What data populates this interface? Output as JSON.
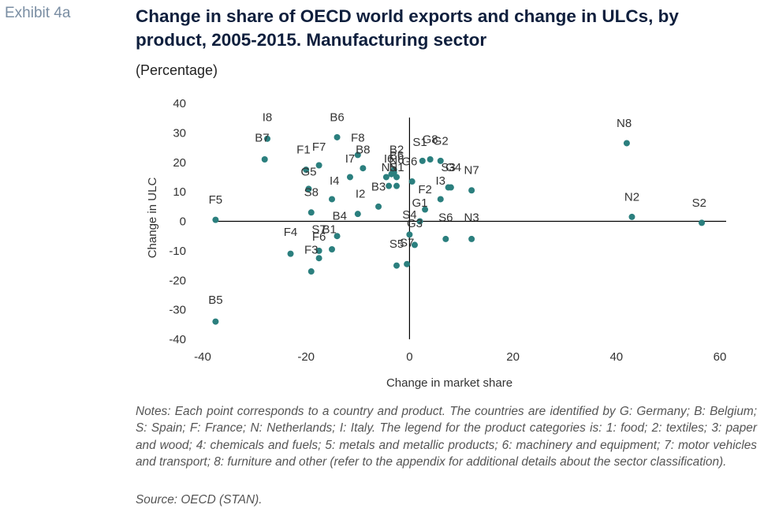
{
  "header": {
    "exhibit": "Exhibit 4a",
    "title": "Change in share of OECD world exports and change in ULCs, by product, 2005-2015. Manufacturing sector",
    "subtitle": "(Percentage)"
  },
  "footer": {
    "notes": "Notes: Each point corresponds to a country and product. The countries are identified by G: Germany; B: Belgium; S: Spain; F: France; N: Netherlands; I: Italy. The legend for the product categories is: 1: food; 2: textiles; 3: paper and wood; 4: chemicals and fuels; 5: metals and metallic products; 6: machinery and equipment; 7: motor vehicles and transport; 8: furniture and other (refer to the appendix for additional details about the sector classification).",
    "source": "Source: OECD (STAN)."
  },
  "colors": {
    "point": "#2b7f7e",
    "axis": "#000000",
    "text": "#222222"
  },
  "chart_data": {
    "type": "scatter",
    "xlabel": "Change in market share",
    "ylabel": "Change in ULC",
    "xlim": [
      -40,
      60
    ],
    "ylim": [
      -40,
      40
    ],
    "xticks": [
      -40,
      -20,
      0,
      20,
      40,
      60
    ],
    "yticks": [
      40,
      30,
      20,
      10,
      0,
      -10,
      -20,
      -30,
      -40
    ],
    "grid": false,
    "points": [
      {
        "label": "F5",
        "x": -37.5,
        "y": 0.5
      },
      {
        "label": "B5",
        "x": -37.5,
        "y": -34
      },
      {
        "label": "B7",
        "x": -28,
        "y": 21
      },
      {
        "label": "I8",
        "x": -27.5,
        "y": 28
      },
      {
        "label": "F1",
        "x": -20,
        "y": 17.5
      },
      {
        "label": "G5",
        "x": -19.5,
        "y": 11
      },
      {
        "label": "S8",
        "x": -19,
        "y": 3
      },
      {
        "label": "F4",
        "x": -23,
        "y": -11
      },
      {
        "label": "F3",
        "x": -19,
        "y": -17
      },
      {
        "label": "F7",
        "x": -17.5,
        "y": 19
      },
      {
        "label": "S7",
        "x": -17.5,
        "y": -10
      },
      {
        "label": "F6",
        "x": -17.5,
        "y": -12.5
      },
      {
        "label": "B6",
        "x": -14,
        "y": 28.5
      },
      {
        "label": "I4",
        "x": -15,
        "y": 7.5
      },
      {
        "label": "B1",
        "x": -15,
        "y": -9.5
      },
      {
        "label": "B4",
        "x": -14,
        "y": -5
      },
      {
        "label": "F8",
        "x": -10,
        "y": 22.5
      },
      {
        "label": "B8",
        "x": -9,
        "y": 18
      },
      {
        "label": "I7",
        "x": -11.5,
        "y": 15
      },
      {
        "label": "I2",
        "x": -10,
        "y": 2.5
      },
      {
        "label": "B3",
        "x": -6,
        "y": 5
      },
      {
        "label": "N5",
        "x": -4.5,
        "y": 15
      },
      {
        "label": "B2",
        "x": -3.5,
        "y": 16
      },
      {
        "label": "I6",
        "x": -3,
        "y": 17.5
      },
      {
        "label": "N6",
        "x": -3,
        "y": 16.5
      },
      {
        "label": "N1",
        "x": -2.5,
        "y": 15
      },
      {
        "label": "G5b",
        "x": -4,
        "y": 12
      },
      {
        "label": "G5c",
        "x": -2.5,
        "y": 12
      },
      {
        "label": "G6",
        "x": 0.5,
        "y": 13.5
      },
      {
        "label": "S1",
        "x": 2.5,
        "y": 20.5
      },
      {
        "label": "G8",
        "x": 4,
        "y": 21
      },
      {
        "label": "G2",
        "x": 6,
        "y": 20.5
      },
      {
        "label": "S3",
        "x": 7.5,
        "y": 11.5
      },
      {
        "label": "G4",
        "x": 8,
        "y": 11.5
      },
      {
        "label": "I3",
        "x": 6,
        "y": 7.5
      },
      {
        "label": "F2",
        "x": 3,
        "y": 4
      },
      {
        "label": "N7",
        "x": 12,
        "y": 10.5
      },
      {
        "label": "G1",
        "x": 2,
        "y": 0
      },
      {
        "label": "S4",
        "x": 0,
        "y": -4.5
      },
      {
        "label": "G3",
        "x": 1,
        "y": -8
      },
      {
        "label": "S6",
        "x": 7,
        "y": -6
      },
      {
        "label": "N3",
        "x": 12,
        "y": -6
      },
      {
        "label": "S5",
        "x": -2.5,
        "y": -15
      },
      {
        "label": "S7b",
        "x": -0.5,
        "y": -14.5
      },
      {
        "label": "N8",
        "x": 42,
        "y": 26.5
      },
      {
        "label": "N2",
        "x": 43,
        "y": 1.5
      },
      {
        "label": "S2",
        "x": 56.5,
        "y": -0.5
      }
    ],
    "point_labels": [
      {
        "text": "F5",
        "x": -37.5,
        "y": 6
      },
      {
        "text": "B5",
        "x": -37.5,
        "y": -28
      },
      {
        "text": "B7",
        "x": -28.5,
        "y": 27
      },
      {
        "text": "I8",
        "x": -27.5,
        "y": 34
      },
      {
        "text": "F1",
        "x": -20.5,
        "y": 23
      },
      {
        "text": "F7",
        "x": -17.5,
        "y": 24
      },
      {
        "text": "G5",
        "x": -19.5,
        "y": 15.5
      },
      {
        "text": "S8",
        "x": -19,
        "y": 8.5
      },
      {
        "text": "I4",
        "x": -14.5,
        "y": 12.5
      },
      {
        "text": "B6",
        "x": -14,
        "y": 34
      },
      {
        "text": "F8",
        "x": -10,
        "y": 27
      },
      {
        "text": "B8",
        "x": -9,
        "y": 23
      },
      {
        "text": "I7",
        "x": -11.5,
        "y": 20
      },
      {
        "text": "I2",
        "x": -9.5,
        "y": 8
      },
      {
        "text": "B3",
        "x": -6,
        "y": 10.5
      },
      {
        "text": "B2",
        "x": -2.5,
        "y": 23
      },
      {
        "text": "I6",
        "x": -4,
        "y": 20
      },
      {
        "text": "B6",
        "x": -2.5,
        "y": 21
      },
      {
        "text": "N6",
        "x": -2.5,
        "y": 19.5
      },
      {
        "text": "N5",
        "x": -4,
        "y": 17
      },
      {
        "text": "N1",
        "x": -2.5,
        "y": 17
      },
      {
        "text": "G6",
        "x": 0,
        "y": 19
      },
      {
        "text": "S1",
        "x": 2,
        "y": 25.5
      },
      {
        "text": "G8",
        "x": 4,
        "y": 26.5
      },
      {
        "text": "G2",
        "x": 6,
        "y": 26
      },
      {
        "text": "S3",
        "x": 7.5,
        "y": 17
      },
      {
        "text": "G4",
        "x": 8.5,
        "y": 17
      },
      {
        "text": "N7",
        "x": 12,
        "y": 16
      },
      {
        "text": "I3",
        "x": 6,
        "y": 12.5
      },
      {
        "text": "F2",
        "x": 3,
        "y": 9.5
      },
      {
        "text": "G1",
        "x": 2,
        "y": 5
      },
      {
        "text": "S4",
        "x": 0,
        "y": 1
      },
      {
        "text": "G3",
        "x": 1,
        "y": -2
      },
      {
        "text": "S6",
        "x": 7,
        "y": 0
      },
      {
        "text": "N3",
        "x": 12,
        "y": 0
      },
      {
        "text": "F4",
        "x": -23,
        "y": -5
      },
      {
        "text": "S7",
        "x": -17.5,
        "y": -4
      },
      {
        "text": "B1",
        "x": -15.5,
        "y": -4
      },
      {
        "text": "B4",
        "x": -13.5,
        "y": 0.5
      },
      {
        "text": "F6",
        "x": -17.5,
        "y": -6.5
      },
      {
        "text": "F3",
        "x": -19,
        "y": -11
      },
      {
        "text": "S5",
        "x": -2.5,
        "y": -9
      },
      {
        "text": "S7",
        "x": -0.5,
        "y": -8.5
      },
      {
        "text": "N8",
        "x": 41.5,
        "y": 32
      },
      {
        "text": "N2",
        "x": 43,
        "y": 7
      },
      {
        "text": "S2",
        "x": 56,
        "y": 5
      }
    ]
  }
}
